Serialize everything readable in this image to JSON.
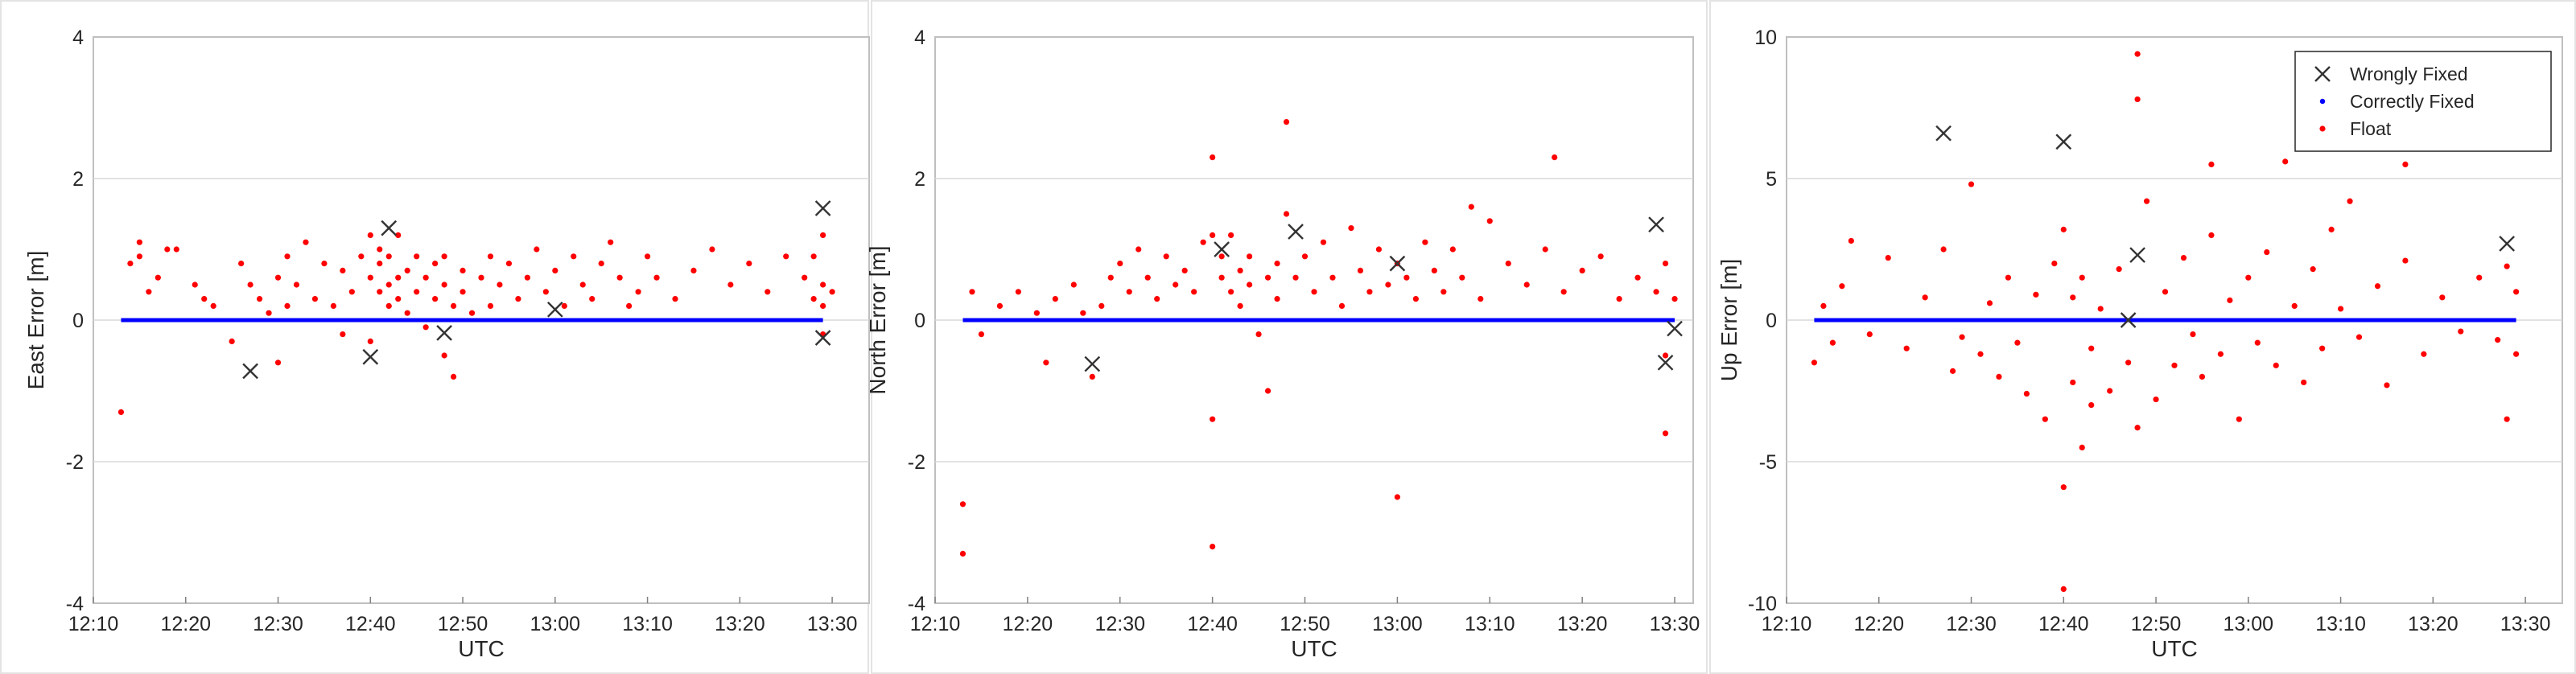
{
  "colors": {
    "float": "#ff0000",
    "correct": "#0000ff",
    "wrong": "#333333",
    "grid": "#d9d9d9",
    "axis": "#bfbfbf"
  },
  "legend": {
    "placement": "top-right of third panel",
    "entries": [
      "Wrongly  Fixed",
      "Correctly Fixed",
      "Float"
    ]
  },
  "chart_data": [
    {
      "type": "scatter",
      "xlabel": "UTC",
      "ylabel": "East Error [m]",
      "xlim": [
        "12:10",
        "13:34"
      ],
      "ylim": [
        -4,
        4
      ],
      "grid": "horizontal",
      "xticks": [
        "12:10",
        "12:20",
        "12:30",
        "12:40",
        "12:50",
        "13:00",
        "13:10",
        "13:20",
        "13:30"
      ],
      "yticks": [
        "-4",
        "-2",
        "0",
        "2",
        "4"
      ],
      "series": [
        {
          "name": "Correctly Fixed",
          "x": [
            "12:13",
            "13:29"
          ],
          "y": [
            0,
            0
          ]
        },
        {
          "name": "Wrongly  Fixed",
          "x": [
            "12:27",
            "12:40",
            "12:42",
            "12:48",
            "13:00",
            "13:29",
            "13:29"
          ],
          "y": [
            -0.72,
            -0.52,
            1.3,
            -0.18,
            0.15,
            1.58,
            -0.25
          ]
        },
        {
          "name": "Float",
          "x": [
            "12:13",
            "12:14",
            "12:15",
            "12:15",
            "12:16",
            "12:17",
            "12:18",
            "12:19",
            "12:21",
            "12:22",
            "12:23",
            "12:25",
            "12:26",
            "12:27",
            "12:28",
            "12:29",
            "12:30",
            "12:30",
            "12:31",
            "12:31",
            "12:32",
            "12:33",
            "12:34",
            "12:35",
            "12:36",
            "12:37",
            "12:37",
            "12:38",
            "12:39",
            "12:40",
            "12:40",
            "12:40",
            "12:41",
            "12:41",
            "12:41",
            "12:42",
            "12:42",
            "12:42",
            "12:43",
            "12:43",
            "12:43",
            "12:44",
            "12:44",
            "12:45",
            "12:45",
            "12:46",
            "12:46",
            "12:47",
            "12:47",
            "12:48",
            "12:48",
            "12:48",
            "12:49",
            "12:49",
            "12:50",
            "12:50",
            "12:51",
            "12:52",
            "12:53",
            "12:53",
            "12:54",
            "12:55",
            "12:56",
            "12:57",
            "12:58",
            "12:59",
            "13:00",
            "13:01",
            "13:02",
            "13:03",
            "13:04",
            "13:05",
            "13:06",
            "13:07",
            "13:08",
            "13:09",
            "13:10",
            "13:11",
            "13:13",
            "13:15",
            "13:17",
            "13:19",
            "13:21",
            "13:23",
            "13:25",
            "13:27",
            "13:28",
            "13:28",
            "13:29",
            "13:29",
            "13:29",
            "13:29",
            "13:30"
          ],
          "y": [
            -1.3,
            0.8,
            1.1,
            0.9,
            0.4,
            0.6,
            1.0,
            1.0,
            0.5,
            0.3,
            0.2,
            -0.3,
            0.8,
            0.5,
            0.3,
            0.1,
            0.6,
            -0.6,
            0.9,
            0.2,
            0.5,
            1.1,
            0.3,
            0.8,
            0.2,
            -0.2,
            0.7,
            0.4,
            0.9,
            0.6,
            -0.3,
            1.2,
            0.4,
            0.8,
            1.0,
            0.5,
            0.2,
            0.9,
            1.2,
            0.6,
            0.3,
            0.7,
            0.1,
            0.9,
            0.4,
            0.6,
            -0.1,
            0.8,
            0.3,
            0.5,
            -0.5,
            0.9,
            0.2,
            -0.8,
            0.7,
            0.4,
            0.1,
            0.6,
            0.9,
            0.2,
            0.5,
            0.8,
            0.3,
            0.6,
            1.0,
            0.4,
            0.7,
            0.2,
            0.9,
            0.5,
            0.3,
            0.8,
            1.1,
            0.6,
            0.2,
            0.4,
            0.9,
            0.6,
            0.3,
            0.7,
            1.0,
            0.5,
            0.8,
            0.4,
            0.9,
            0.6,
            0.3,
            0.9,
            -0.2,
            0.5,
            1.2,
            0.2,
            0.4
          ]
        }
      ]
    },
    {
      "type": "scatter",
      "xlabel": "UTC",
      "ylabel": "North Error [m]",
      "xlim": [
        "12:10",
        "13:32"
      ],
      "ylim": [
        -4,
        4
      ],
      "grid": "horizontal",
      "xticks": [
        "12:10",
        "12:20",
        "12:30",
        "12:40",
        "12:50",
        "13:00",
        "13:10",
        "13:20",
        "13:30"
      ],
      "yticks": [
        "-4",
        "-2",
        "0",
        "2",
        "4"
      ],
      "series": [
        {
          "name": "Correctly Fixed",
          "x": [
            "12:13",
            "13:30"
          ],
          "y": [
            0,
            0
          ]
        },
        {
          "name": "Wrongly  Fixed",
          "x": [
            "12:27",
            "12:41",
            "12:49",
            "13:00",
            "13:28",
            "13:29",
            "13:30"
          ],
          "y": [
            -0.62,
            1.0,
            1.25,
            0.8,
            1.35,
            -0.6,
            -0.12
          ]
        },
        {
          "name": "Float",
          "x": [
            "12:13",
            "12:13",
            "12:14",
            "12:15",
            "12:17",
            "12:19",
            "12:21",
            "12:22",
            "12:23",
            "12:25",
            "12:26",
            "12:27",
            "12:28",
            "12:29",
            "12:30",
            "12:31",
            "12:32",
            "12:33",
            "12:34",
            "12:35",
            "12:36",
            "12:37",
            "12:38",
            "12:39",
            "12:40",
            "12:40",
            "12:40",
            "12:40",
            "12:41",
            "12:41",
            "12:42",
            "12:42",
            "12:43",
            "12:43",
            "12:44",
            "12:44",
            "12:45",
            "12:46",
            "12:46",
            "12:47",
            "12:47",
            "12:48",
            "12:48",
            "12:49",
            "12:50",
            "12:51",
            "12:52",
            "12:53",
            "12:54",
            "12:55",
            "12:56",
            "12:57",
            "12:58",
            "12:59",
            "13:00",
            "13:00",
            "13:01",
            "13:02",
            "13:03",
            "13:04",
            "13:05",
            "13:06",
            "13:07",
            "13:08",
            "13:09",
            "13:10",
            "13:12",
            "13:14",
            "13:16",
            "13:17",
            "13:18",
            "13:20",
            "13:22",
            "13:24",
            "13:26",
            "13:28",
            "13:29",
            "13:29",
            "13:29",
            "13:30"
          ],
          "y": [
            -2.6,
            -3.3,
            0.4,
            -0.2,
            0.2,
            0.4,
            0.1,
            -0.6,
            0.3,
            0.5,
            0.1,
            -0.8,
            0.2,
            0.6,
            0.8,
            0.4,
            1.0,
            0.6,
            0.3,
            0.9,
            0.5,
            0.7,
            0.4,
            1.1,
            2.3,
            -1.4,
            -3.2,
            1.2,
            0.6,
            0.9,
            0.4,
            1.2,
            0.7,
            0.2,
            0.9,
            0.5,
            -0.2,
            0.6,
            -1.0,
            0.8,
            0.3,
            2.8,
            1.5,
            0.6,
            0.9,
            0.4,
            1.1,
            0.6,
            0.2,
            1.3,
            0.7,
            0.4,
            1.0,
            0.5,
            -2.5,
            0.8,
            0.6,
            0.3,
            1.1,
            0.7,
            0.4,
            1.0,
            0.6,
            1.6,
            0.3,
            1.4,
            0.8,
            0.5,
            1.0,
            2.3,
            0.4,
            0.7,
            0.9,
            0.3,
            0.6,
            0.4,
            -1.6,
            0.8,
            -0.5,
            0.3
          ]
        }
      ]
    },
    {
      "type": "scatter",
      "xlabel": "UTC",
      "ylabel": "Up Error [m]",
      "xlim": [
        "12:10",
        "13:34"
      ],
      "ylim": [
        -10,
        10
      ],
      "grid": "horizontal",
      "xticks": [
        "12:10",
        "12:20",
        "12:30",
        "12:40",
        "12:50",
        "13:00",
        "13:10",
        "13:20",
        "13:30"
      ],
      "yticks": [
        "-10",
        "-5",
        "0",
        "5",
        "10"
      ],
      "series": [
        {
          "name": "Correctly Fixed",
          "x": [
            "12:13",
            "13:29"
          ],
          "y": [
            0,
            0
          ]
        },
        {
          "name": "Wrongly  Fixed",
          "x": [
            "12:27",
            "12:40",
            "12:47",
            "12:48",
            "13:28"
          ],
          "y": [
            6.6,
            6.3,
            0.0,
            2.3,
            2.7
          ]
        },
        {
          "name": "Float",
          "x": [
            "12:13",
            "12:14",
            "12:15",
            "12:16",
            "12:17",
            "12:19",
            "12:21",
            "12:23",
            "12:25",
            "12:27",
            "12:28",
            "12:29",
            "12:30",
            "12:31",
            "12:32",
            "12:33",
            "12:34",
            "12:35",
            "12:36",
            "12:37",
            "12:38",
            "12:39",
            "12:40",
            "12:40",
            "12:40",
            "12:41",
            "12:41",
            "12:42",
            "12:42",
            "12:43",
            "12:43",
            "12:44",
            "12:45",
            "12:46",
            "12:47",
            "12:48",
            "12:48",
            "12:48",
            "12:49",
            "12:50",
            "12:51",
            "12:52",
            "12:53",
            "12:54",
            "12:55",
            "12:56",
            "12:56",
            "12:57",
            "12:58",
            "12:59",
            "13:00",
            "13:01",
            "13:02",
            "13:03",
            "13:04",
            "13:05",
            "13:06",
            "13:07",
            "13:08",
            "13:09",
            "13:10",
            "13:11",
            "13:12",
            "13:14",
            "13:15",
            "13:17",
            "13:17",
            "13:19",
            "13:21",
            "13:23",
            "13:25",
            "13:27",
            "13:28",
            "13:28",
            "13:29",
            "13:29"
          ],
          "y": [
            -1.5,
            0.5,
            -0.8,
            1.2,
            2.8,
            -0.5,
            2.2,
            -1.0,
            0.8,
            2.5,
            -1.8,
            -0.6,
            4.8,
            -1.2,
            0.6,
            -2.0,
            1.5,
            -0.8,
            -2.6,
            0.9,
            -3.5,
            2.0,
            -5.9,
            -9.5,
            3.2,
            -2.2,
            0.8,
            -4.5,
            1.5,
            -1.0,
            -3.0,
            0.4,
            -2.5,
            1.8,
            -1.5,
            9.4,
            7.8,
            -3.8,
            4.2,
            -2.8,
            1.0,
            -1.6,
            2.2,
            -0.5,
            -2.0,
            5.5,
            3.0,
            -1.2,
            0.7,
            -3.5,
            1.5,
            -0.8,
            2.4,
            -1.6,
            5.6,
            0.5,
            -2.2,
            1.8,
            -1.0,
            3.2,
            0.4,
            4.2,
            -0.6,
            1.2,
            -2.3,
            5.5,
            2.1,
            -1.2,
            0.8,
            -0.4,
            1.5,
            -0.7,
            1.9,
            -3.5,
            -1.2,
            1.0
          ]
        }
      ]
    }
  ]
}
